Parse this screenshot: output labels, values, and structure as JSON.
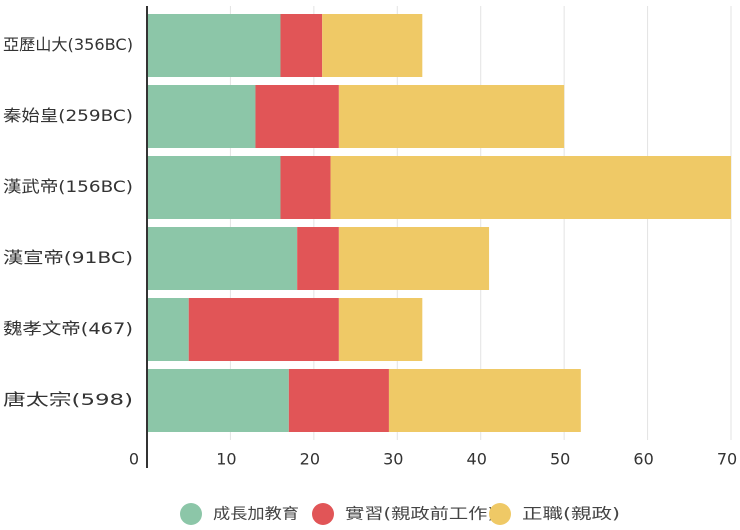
{
  "chart_data": {
    "type": "bar",
    "orientation": "horizontal",
    "stacked": true,
    "categories": [
      "亞歷山大(356BC)",
      "秦始皇(259BC)",
      "漢武帝(156BC)",
      "漢宣帝(91BC)",
      "魏孝文帝(467)",
      "唐太宗(598)"
    ],
    "series": [
      {
        "name": "成長加教育",
        "color": "#8cc6a8",
        "values": [
          16,
          13,
          16,
          18,
          5,
          17
        ]
      },
      {
        "name": "實習(親政前工作)",
        "color": "#e15557",
        "values": [
          5,
          10,
          6,
          5,
          18,
          12
        ]
      },
      {
        "name": "正職(親政)",
        "color": "#efc966",
        "values": [
          12,
          27,
          48,
          18,
          10,
          23
        ]
      }
    ],
    "xlim": [
      0,
      70
    ],
    "x_ticks": [
      0,
      10,
      20,
      30,
      40,
      50,
      60,
      70
    ],
    "x_tick_labels": [
      "0",
      "10",
      "20",
      "30",
      "40",
      "50",
      "60",
      "70"
    ],
    "grid": true,
    "legend": {
      "position": "bottom"
    }
  }
}
